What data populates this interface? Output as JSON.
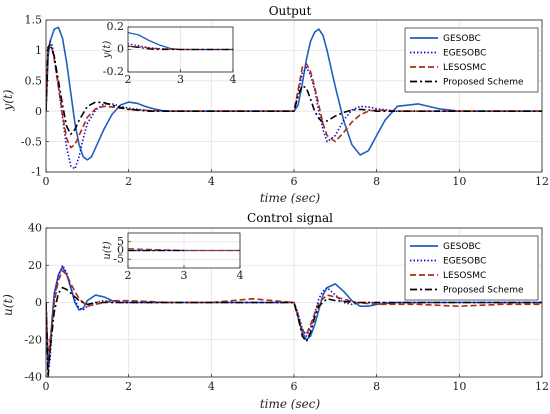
{
  "chart_data": [
    {
      "type": "line",
      "title": "Output",
      "xlabel": "time (sec)",
      "ylabel": "y(t)",
      "xlim": [
        0,
        12
      ],
      "ylim": [
        -1,
        1.5
      ],
      "xticks": [
        0,
        2,
        4,
        6,
        8,
        10,
        12
      ],
      "yticks": [
        -1,
        -0.5,
        0,
        0.5,
        1,
        1.5
      ],
      "grid": true,
      "legend_position": "top-right",
      "series": [
        {
          "name": "GESOBC",
          "color": "#1f5fbf",
          "style": "solid",
          "x": [
            0,
            0.05,
            0.1,
            0.2,
            0.3,
            0.4,
            0.5,
            0.6,
            0.7,
            0.8,
            0.9,
            1.0,
            1.1,
            1.2,
            1.4,
            1.6,
            1.8,
            2.0,
            2.2,
            2.4,
            2.6,
            2.8,
            3.0,
            3.5,
            4.0,
            5.0,
            6.0,
            6.1,
            6.2,
            6.3,
            6.4,
            6.5,
            6.6,
            6.7,
            6.8,
            7.0,
            7.2,
            7.4,
            7.6,
            7.8,
            8.0,
            8.2,
            8.5,
            9.0,
            9.5,
            10,
            12
          ],
          "y": [
            0,
            0.9,
            1.15,
            1.35,
            1.38,
            1.2,
            0.8,
            0.3,
            -0.2,
            -0.55,
            -0.75,
            -0.8,
            -0.75,
            -0.6,
            -0.3,
            -0.05,
            0.1,
            0.15,
            0.13,
            0.08,
            0.04,
            0.01,
            0,
            0,
            0,
            0,
            0,
            0.1,
            0.45,
            0.85,
            1.15,
            1.3,
            1.35,
            1.25,
            1.0,
            0.4,
            -0.15,
            -0.55,
            -0.72,
            -0.65,
            -0.4,
            -0.15,
            0.08,
            0.12,
            0.04,
            0,
            0
          ]
        },
        {
          "name": "EGESOBC",
          "color": "#1010d0",
          "style": "dotted",
          "x": [
            0,
            0.05,
            0.1,
            0.15,
            0.2,
            0.3,
            0.4,
            0.5,
            0.6,
            0.7,
            0.8,
            0.9,
            1.0,
            1.2,
            1.4,
            1.6,
            1.8,
            2.0,
            2.5,
            3.0,
            4.0,
            6.0,
            6.1,
            6.2,
            6.3,
            6.4,
            6.5,
            6.6,
            6.7,
            6.8,
            7.0,
            7.2,
            7.4,
            7.6,
            7.8,
            8.0,
            8.5,
            9.0,
            12
          ],
          "y": [
            0,
            1.0,
            1.15,
            1.08,
            0.9,
            0.4,
            -0.1,
            -0.6,
            -0.9,
            -0.95,
            -0.75,
            -0.45,
            -0.2,
            0.02,
            0.12,
            0.12,
            0.08,
            0.05,
            0.01,
            0,
            0,
            0,
            0.3,
            0.62,
            0.72,
            0.6,
            0.35,
            0.0,
            -0.3,
            -0.5,
            -0.4,
            -0.15,
            0.02,
            0.08,
            0.07,
            0.04,
            0,
            0,
            0
          ]
        },
        {
          "name": "LESOSMC",
          "color": "#b22a14",
          "style": "dashed",
          "x": [
            0,
            0.05,
            0.1,
            0.15,
            0.2,
            0.3,
            0.4,
            0.5,
            0.6,
            0.7,
            0.8,
            0.9,
            1.0,
            1.2,
            1.4,
            1.6,
            1.8,
            2.0,
            2.5,
            3.0,
            4.0,
            6.0,
            6.1,
            6.2,
            6.3,
            6.4,
            6.5,
            6.6,
            6.7,
            6.8,
            7.0,
            7.2,
            7.4,
            7.6,
            7.8,
            8.0,
            8.5,
            12
          ],
          "y": [
            0,
            1.05,
            1.1,
            1.02,
            0.85,
            0.4,
            -0.05,
            -0.45,
            -0.6,
            -0.55,
            -0.4,
            -0.25,
            -0.1,
            0.04,
            0.08,
            0.07,
            0.05,
            0.03,
            0.01,
            0,
            0,
            0,
            0.35,
            0.72,
            0.78,
            0.65,
            0.4,
            0.1,
            -0.2,
            -0.4,
            -0.5,
            -0.35,
            -0.18,
            -0.06,
            0,
            0.02,
            0,
            0
          ]
        },
        {
          "name": "Proposed Scheme",
          "color": "#000000",
          "style": "dashdot",
          "x": [
            0,
            0.05,
            0.1,
            0.2,
            0.3,
            0.4,
            0.5,
            0.6,
            0.7,
            0.8,
            1.0,
            1.2,
            1.4,
            1.6,
            1.8,
            2.0,
            2.5,
            3.0,
            4.0,
            6.0,
            6.1,
            6.2,
            6.3,
            6.4,
            6.5,
            6.6,
            6.7,
            6.8,
            7.0,
            7.2,
            7.4,
            7.6,
            7.8,
            8.0,
            12
          ],
          "y": [
            0,
            1.05,
            1.1,
            0.9,
            0.5,
            0.1,
            -0.25,
            -0.38,
            -0.3,
            -0.15,
            0.08,
            0.15,
            0.14,
            0.1,
            0.06,
            0.03,
            0,
            0,
            0,
            0,
            0.25,
            0.42,
            0.38,
            0.2,
            0.0,
            -0.12,
            -0.18,
            -0.16,
            -0.08,
            -0.02,
            0.02,
            0.03,
            0.02,
            0,
            0
          ]
        }
      ],
      "inset": {
        "xlim": [
          2,
          4
        ],
        "ylim": [
          -0.2,
          0.2
        ],
        "xticks": [
          2,
          3,
          4
        ],
        "yticks": [
          -0.2,
          0,
          0.2
        ],
        "ylabel": "y(t)"
      }
    },
    {
      "type": "line",
      "title": "Control signal",
      "xlabel": "time (sec)",
      "ylabel": "u(t)",
      "xlim": [
        0,
        12
      ],
      "ylim": [
        -40,
        40
      ],
      "xticks": [
        0,
        2,
        4,
        6,
        8,
        10,
        12
      ],
      "yticks": [
        -40,
        -20,
        0,
        20,
        40
      ],
      "grid": true,
      "legend_position": "top-right",
      "series": [
        {
          "name": "GESOBC",
          "color": "#1f5fbf",
          "style": "solid",
          "x": [
            0,
            0.05,
            0.1,
            0.15,
            0.2,
            0.3,
            0.4,
            0.5,
            0.6,
            0.7,
            0.8,
            0.9,
            1.0,
            1.2,
            1.4,
            1.6,
            1.8,
            2.0,
            2.5,
            3.0,
            4.0,
            6.0,
            6.1,
            6.2,
            6.3,
            6.4,
            6.5,
            6.6,
            6.7,
            6.8,
            7.0,
            7.2,
            7.4,
            7.6,
            7.8,
            8.0,
            8.5,
            12
          ],
          "y": [
            0,
            -35,
            -25,
            -8,
            5,
            15,
            19,
            15,
            8,
            0,
            -4,
            -3,
            1,
            4,
            3,
            1,
            0,
            0,
            0,
            0,
            0,
            0,
            -8,
            -16,
            -20,
            -18,
            -12,
            -4,
            4,
            8,
            10,
            6,
            1,
            -2,
            -2,
            -1,
            0,
            0
          ]
        },
        {
          "name": "EGESOBC",
          "color": "#1010d0",
          "style": "dotted",
          "x": [
            0,
            0.05,
            0.1,
            0.15,
            0.2,
            0.3,
            0.4,
            0.5,
            0.6,
            0.7,
            0.8,
            0.9,
            1.0,
            1.2,
            1.4,
            1.6,
            2.0,
            3.0,
            6.0,
            6.1,
            6.2,
            6.3,
            6.4,
            6.5,
            6.6,
            6.7,
            6.8,
            7.0,
            7.2,
            7.4,
            7.6,
            8.0,
            12
          ],
          "y": [
            0,
            -38,
            -30,
            -12,
            2,
            14,
            20,
            16,
            8,
            1,
            -3,
            -4,
            -2,
            0,
            1,
            0,
            0,
            0,
            0,
            -6,
            -14,
            -18,
            -14,
            -6,
            2,
            6,
            8,
            4,
            0,
            -1,
            0,
            0,
            0
          ]
        },
        {
          "name": "LESOSMC",
          "color": "#b22a14",
          "style": "dashed",
          "x": [
            0,
            0.05,
            0.1,
            0.2,
            0.3,
            0.4,
            0.5,
            0.6,
            0.8,
            1.0,
            1.2,
            1.4,
            1.6,
            2.0,
            3.0,
            4.0,
            5.0,
            6.0,
            6.1,
            6.2,
            6.3,
            6.4,
            6.5,
            6.6,
            6.8,
            7.0,
            7.5,
            8.0,
            9.0,
            10.0,
            11.0,
            12
          ],
          "y": [
            0,
            -30,
            -20,
            0,
            12,
            17,
            15,
            10,
            2,
            -2,
            -1,
            0,
            1,
            1,
            0,
            0,
            2,
            0,
            -7,
            -15,
            -17,
            -12,
            -6,
            0,
            4,
            3,
            0,
            -1,
            -1,
            -2,
            -1,
            -1
          ]
        },
        {
          "name": "Proposed Scheme",
          "color": "#000000",
          "style": "dashdot",
          "x": [
            0,
            0.05,
            0.1,
            0.2,
            0.3,
            0.4,
            0.5,
            0.6,
            0.8,
            1.0,
            1.2,
            1.5,
            2.0,
            3.0,
            6.0,
            6.1,
            6.2,
            6.3,
            6.4,
            6.5,
            6.6,
            6.8,
            7.0,
            7.5,
            8.0,
            12
          ],
          "y": [
            0,
            -40,
            -25,
            -5,
            5,
            8,
            7,
            5,
            1,
            -1,
            0,
            0,
            0,
            0,
            0,
            -8,
            -18,
            -21,
            -16,
            -8,
            -2,
            2,
            1,
            0,
            0,
            0
          ]
        }
      ],
      "inset": {
        "xlim": [
          2,
          4
        ],
        "ylim": [
          -10,
          10
        ],
        "xticks": [
          2,
          3,
          4
        ],
        "yticks": [
          -5,
          0,
          5
        ],
        "ylabel": "u(t)"
      }
    }
  ]
}
